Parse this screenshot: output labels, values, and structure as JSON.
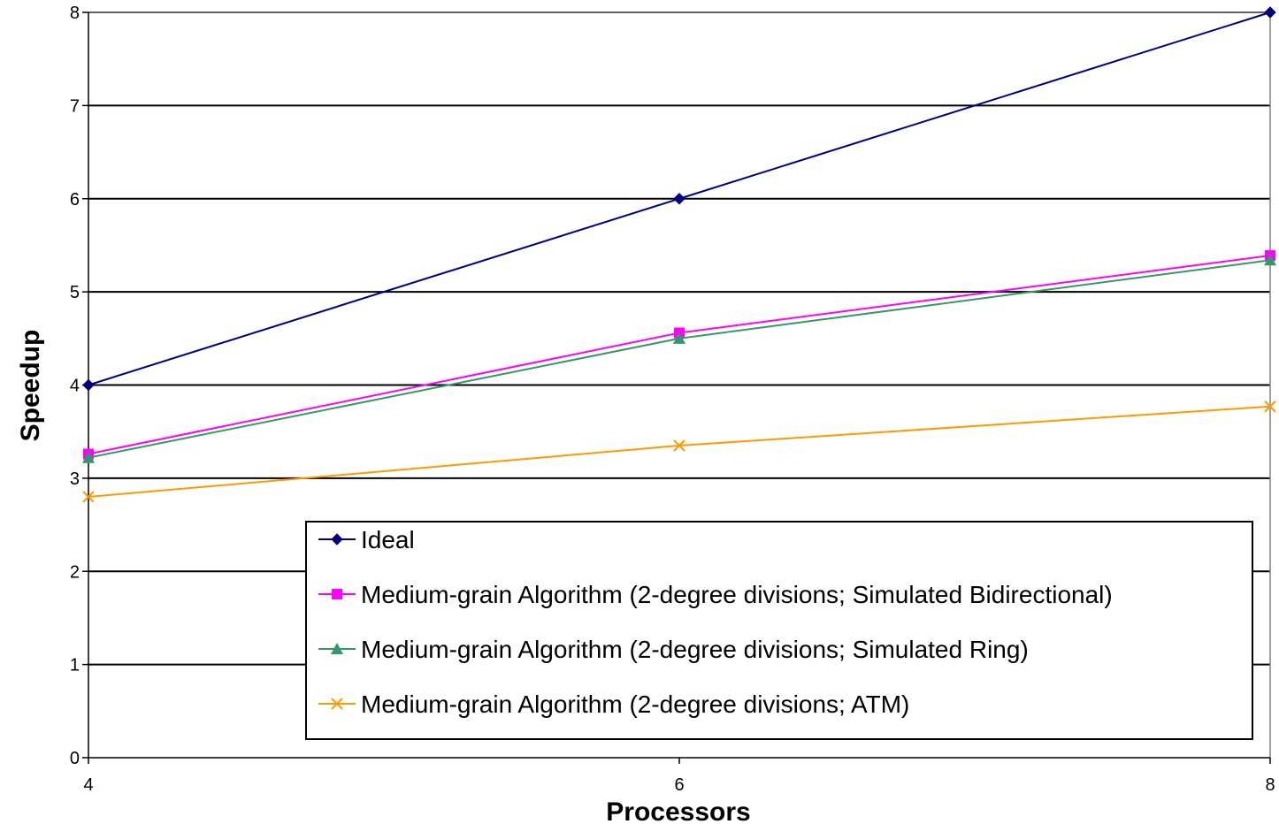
{
  "chart_data": {
    "type": "line",
    "title": "",
    "xlabel": "Processors",
    "ylabel": "Speedup",
    "x": [
      4,
      6,
      8
    ],
    "x_ticks": [
      "4",
      "6",
      "8"
    ],
    "y_ticks": [
      "0",
      "1",
      "2",
      "3",
      "4",
      "5",
      "6",
      "7",
      "8"
    ],
    "xlim": [
      4,
      8
    ],
    "ylim": [
      0,
      8
    ],
    "grid": "horizontal",
    "legend_position": "lower-right inside",
    "series": [
      {
        "name": "Ideal",
        "values": [
          4,
          6,
          8
        ],
        "color": "#000080",
        "marker": "diamond"
      },
      {
        "name": "Medium-grain Algorithm (2-degree divisions; Simulated Bidirectional)",
        "values": [
          3.26,
          4.56,
          5.39
        ],
        "color": "#ff00ff",
        "marker": "square"
      },
      {
        "name": "Medium-grain Algorithm (2-degree divisions; Simulated Ring)",
        "values": [
          3.22,
          4.5,
          5.34
        ],
        "color": "#339966",
        "marker": "triangle"
      },
      {
        "name": "Medium-grain Algorithm (2-degree divisions; ATM)",
        "values": [
          2.8,
          3.35,
          3.77
        ],
        "color": "#ff9900",
        "marker": "x"
      }
    ]
  }
}
